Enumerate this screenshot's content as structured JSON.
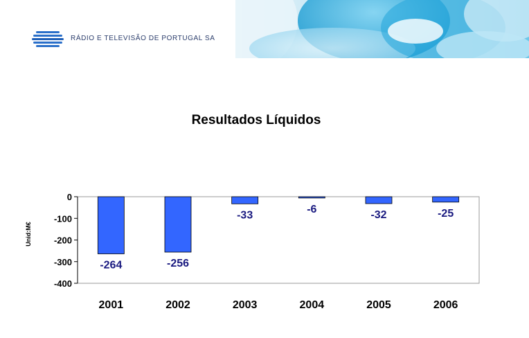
{
  "header": {
    "company_name": "RÁDIO E TELEVISÃO DE PORTUGAL SA",
    "logo_icon": "rtp-striped-globe-icon",
    "banner_icon": "abstract-blue-waves-banner"
  },
  "chart_data": {
    "type": "bar",
    "title": "Resultados Líquidos",
    "xlabel": "",
    "ylabel": "Unid:M€",
    "categories": [
      "2001",
      "2002",
      "2003",
      "2004",
      "2005",
      "2006"
    ],
    "values": [
      -264,
      -256,
      -33,
      -6,
      -32,
      -25
    ],
    "data_labels": [
      "-264",
      "-256",
      "-33",
      "-6",
      "-32",
      "-25"
    ],
    "ylim": [
      -400,
      0
    ],
    "yticks": [
      0,
      -100,
      -200,
      -300,
      -400
    ],
    "ytick_labels": [
      "0",
      "-100",
      "-200",
      "-300",
      "-400"
    ],
    "grid": false,
    "legend": "none",
    "colors": {
      "bar": "#3366ff",
      "label": "#1a1a80",
      "axis": "#000000"
    }
  }
}
